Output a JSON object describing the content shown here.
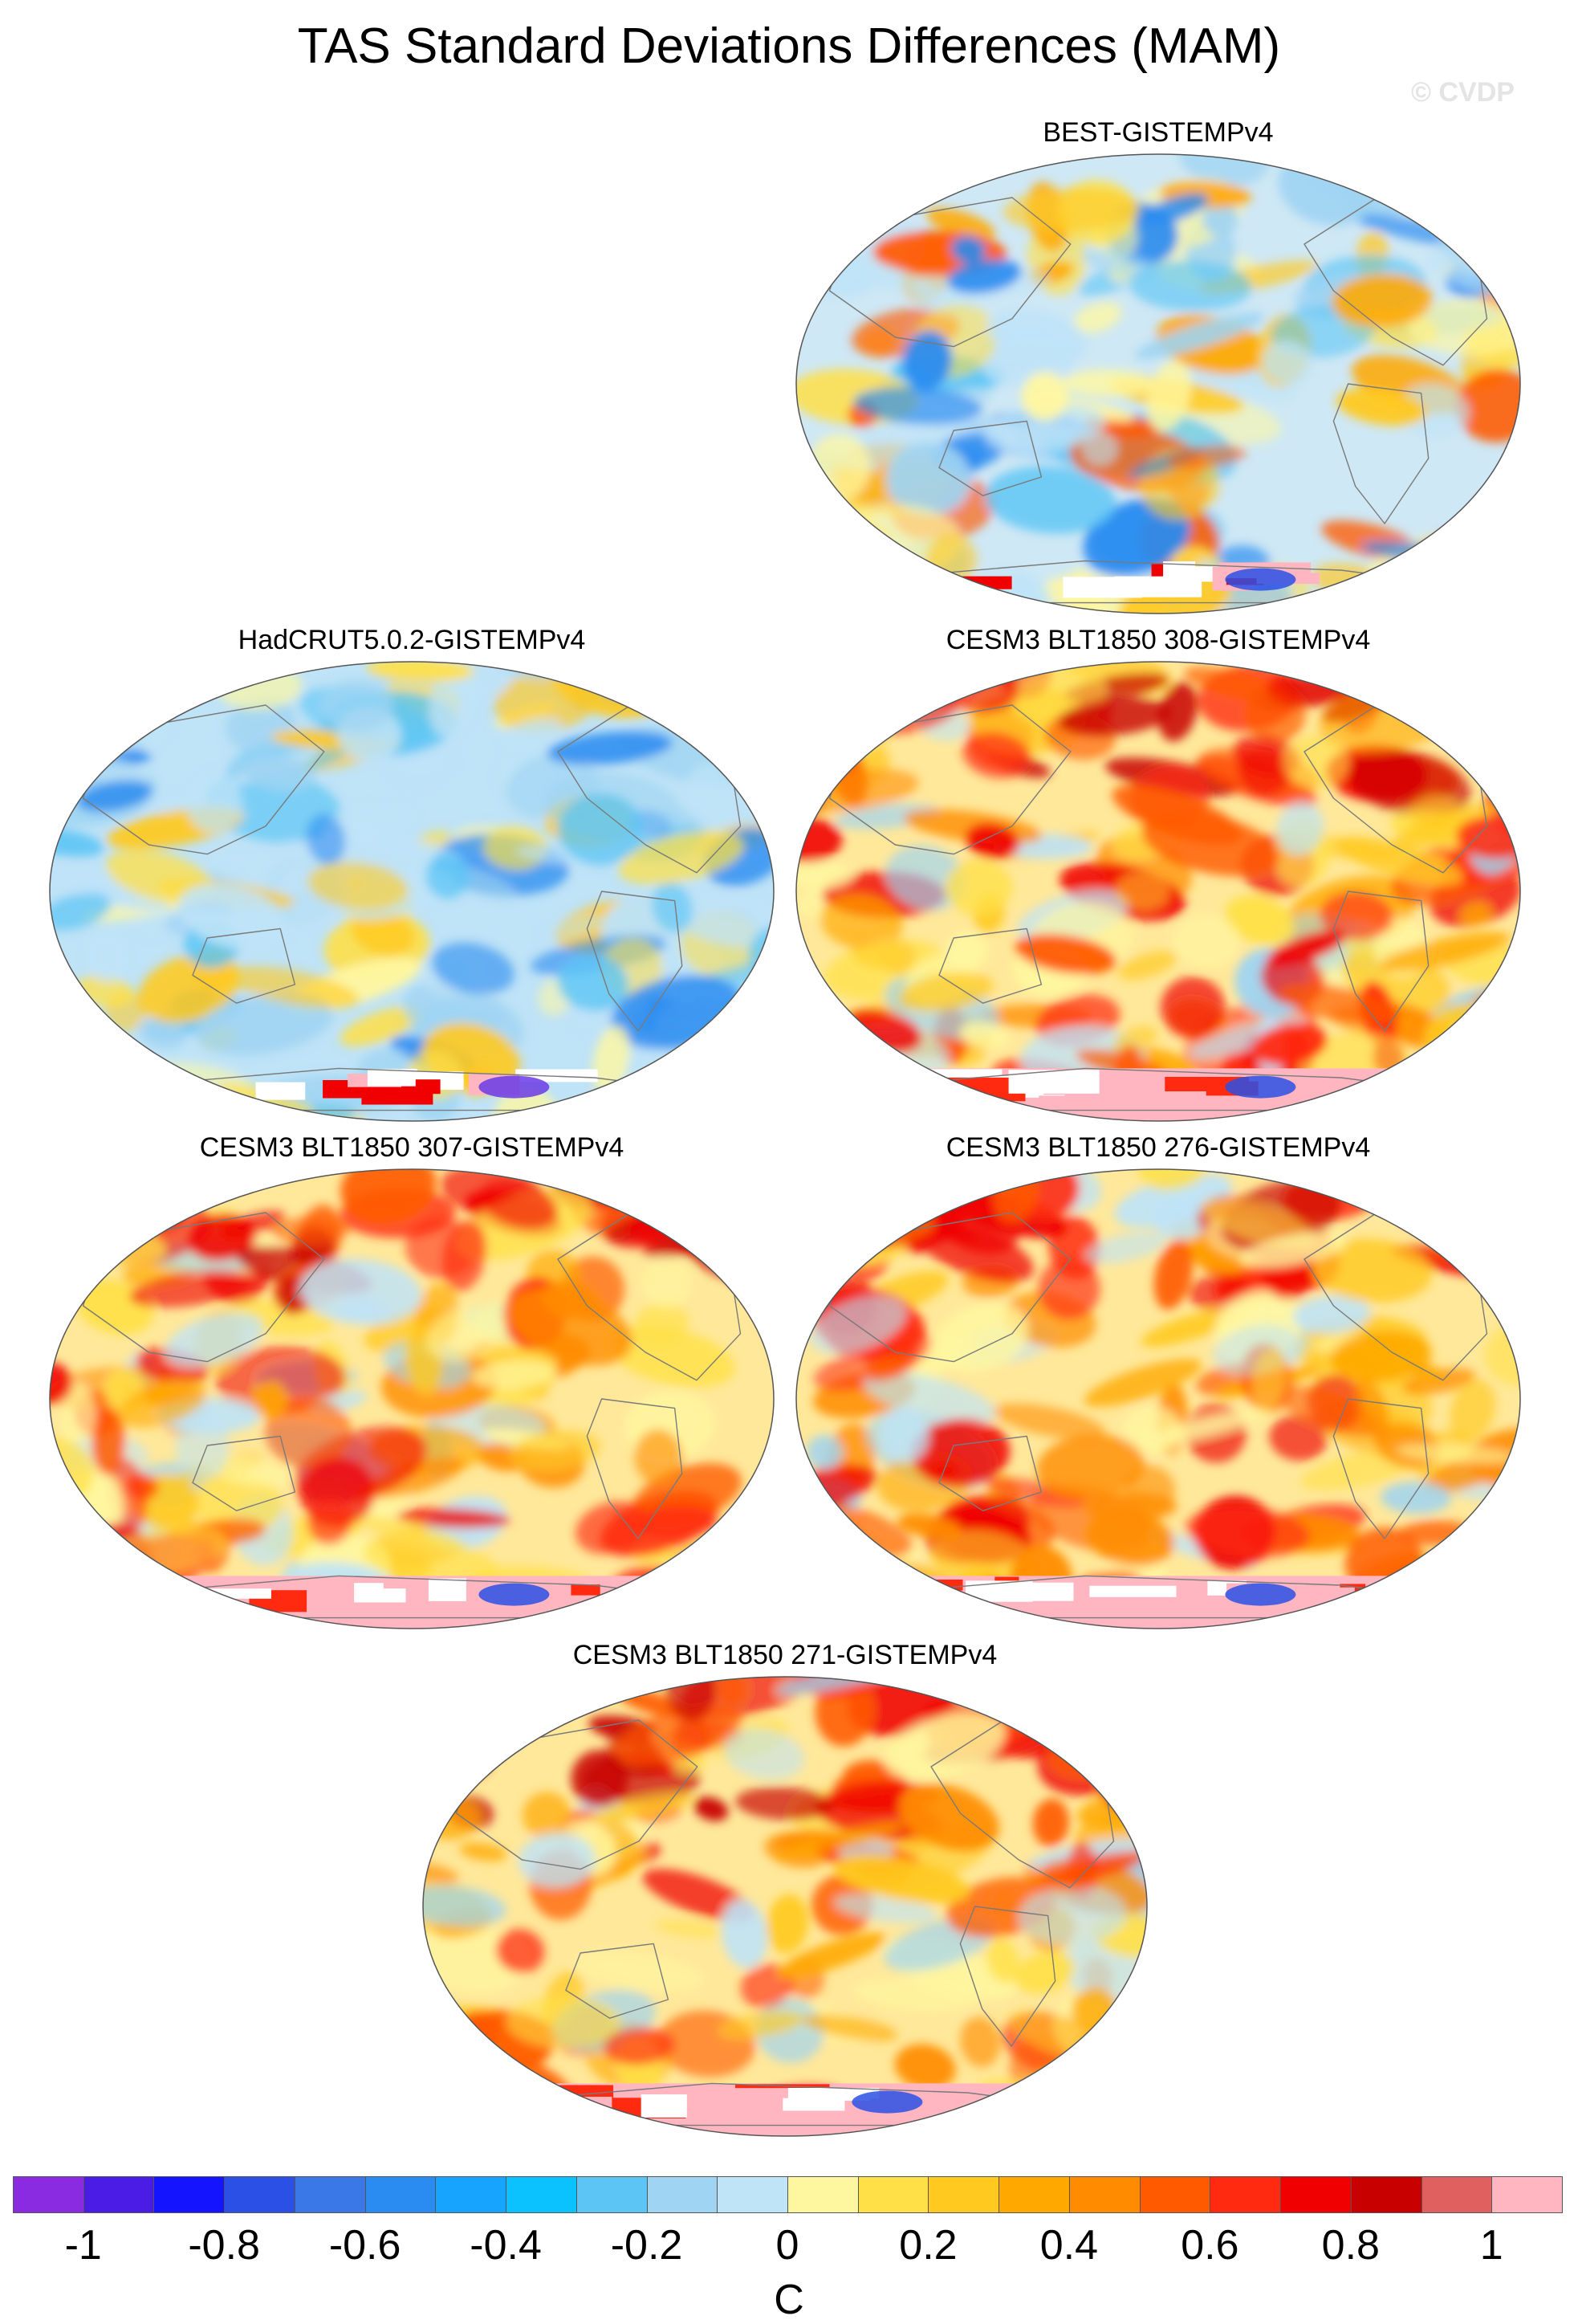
{
  "title": "TAS Standard Deviations Differences (MAM)",
  "watermark": "© CVDP",
  "panels": [
    {
      "label": "BEST-GISTEMPv4",
      "tone": "mixed-cool"
    },
    {
      "label": "HadCRUT5.0.2-GISTEMPv4",
      "tone": "cool"
    },
    {
      "label": "CESM3 BLT1850 308-GISTEMPv4",
      "tone": "warm"
    },
    {
      "label": "CESM3 BLT1850 307-GISTEMPv4",
      "tone": "warm"
    },
    {
      "label": "CESM3 BLT1850 276-GISTEMPv4",
      "tone": "warm"
    },
    {
      "label": "CESM3 BLT1850 271-GISTEMPv4",
      "tone": "warm"
    }
  ],
  "colorbar": {
    "unit": "C",
    "colors": [
      "#8a2be2",
      "#4b1ce6",
      "#1414ff",
      "#2b50e6",
      "#3a78e8",
      "#2a8cf0",
      "#16a4ff",
      "#0bc2ff",
      "#5cc5f5",
      "#9fd4f2",
      "#bfe3f7",
      "#fff7a0",
      "#ffe047",
      "#ffc920",
      "#ffa800",
      "#ff8c00",
      "#ff5a00",
      "#ff2a10",
      "#f00000",
      "#c80000",
      "#e06060",
      "#ffb6c1"
    ],
    "ticks": [
      "-1",
      "-0.8",
      "-0.6",
      "-0.4",
      "-0.2",
      "0",
      "0.2",
      "0.4",
      "0.6",
      "0.8",
      "1"
    ]
  }
}
